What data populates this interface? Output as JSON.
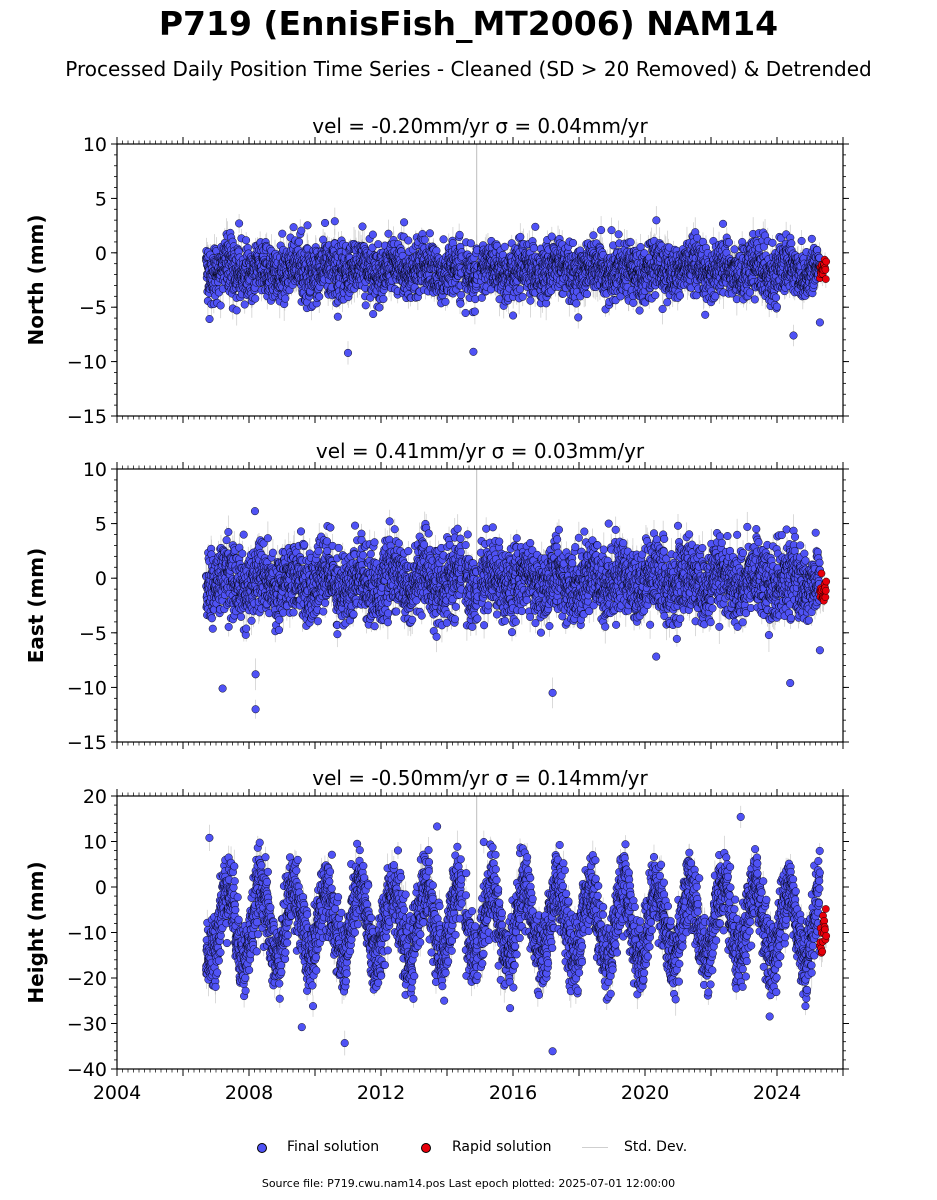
{
  "title": "P719 (EnnisFish_MT2006) NAM14",
  "subtitle": "Processed Daily Position Time Series - Cleaned (SD > 20 Removed) & Detrended",
  "source_note": "Source file: P719.cwu.nam14.pos  Last epoch plotted: 2025-07-01 12:00:00",
  "colors": {
    "final": "#4f52f5",
    "rapid": "#e8000b",
    "sd": "#bdbdbd",
    "edge": "#000000"
  },
  "legend": {
    "final_label": "Final solution",
    "rapid_label": "Rapid solution",
    "sd_label": "Std. Dev."
  },
  "chart_data": [
    {
      "type": "scatter",
      "title": "vel = -0.20mm/yr   σ = 0.04mm/yr",
      "ylabel": "North (mm)",
      "xlim": [
        2004,
        2026
      ],
      "ylim": [
        -15,
        10
      ],
      "yticks": [
        -15,
        -10,
        -5,
        0,
        5,
        10
      ],
      "series": [
        {
          "name": "Final solution",
          "x_range": [
            2006.7,
            2025.3
          ],
          "mean": -1.6,
          "spread": 1.2,
          "seasonal_amplitude": 0.5
        },
        {
          "name": "Rapid solution",
          "x_range": [
            2025.3,
            2025.5
          ],
          "mean": -1.5,
          "spread": 0.6
        }
      ],
      "outliers": [
        [
          2011.0,
          -9.2
        ],
        [
          2014.8,
          -9.1
        ],
        [
          2024.5,
          -7.6
        ],
        [
          2025.3,
          -6.4
        ],
        [
          2010.6,
          2.9
        ],
        [
          2012.7,
          2.8
        ],
        [
          2007.7,
          2.7
        ]
      ]
    },
    {
      "type": "scatter",
      "title": "vel = 0.41mm/yr   σ = 0.03mm/yr",
      "ylabel": "East (mm)",
      "xlim": [
        2004,
        2026
      ],
      "ylim": [
        -15,
        10
      ],
      "yticks": [
        -15,
        -10,
        -5,
        0,
        5,
        10
      ],
      "series": [
        {
          "name": "Final solution",
          "x_range": [
            2006.7,
            2025.3
          ],
          "mean": -0.3,
          "spread": 1.6,
          "seasonal_amplitude": 0.8
        },
        {
          "name": "Rapid solution",
          "x_range": [
            2025.3,
            2025.5
          ],
          "mean": -1.0,
          "spread": 0.8
        }
      ],
      "outliers": [
        [
          2008.2,
          -12.0
        ],
        [
          2007.2,
          -10.1
        ],
        [
          2017.2,
          -10.5
        ],
        [
          2024.4,
          -9.6
        ],
        [
          2008.2,
          -8.8
        ],
        [
          2025.3,
          -6.6
        ],
        [
          2021.0,
          4.8
        ],
        [
          2018.9,
          5.0
        ],
        [
          2023.1,
          4.7
        ]
      ]
    },
    {
      "type": "scatter",
      "title": "vel = -0.50mm/yr   σ = 0.14mm/yr",
      "ylabel": "Height (mm)",
      "xlim": [
        2004,
        2026
      ],
      "ylim": [
        -40,
        20
      ],
      "yticks": [
        -40,
        -30,
        -20,
        -10,
        0,
        10,
        20
      ],
      "xticks": [
        2004,
        2008,
        2012,
        2016,
        2020,
        2024
      ],
      "series": [
        {
          "name": "Final solution",
          "x_range": [
            2006.7,
            2025.3
          ],
          "mean": -8.0,
          "spread": 4.0,
          "seasonal_amplitude": 8.0
        },
        {
          "name": "Rapid solution",
          "x_range": [
            2025.3,
            2025.5
          ],
          "mean": -9.5,
          "spread": 3.0
        }
      ],
      "outliers": [
        [
          2010.9,
          -34.3
        ],
        [
          2017.2,
          -36.1
        ],
        [
          2022.9,
          15.4
        ],
        [
          2013.7,
          13.3
        ],
        [
          2006.8,
          10.8
        ],
        [
          2009.6,
          -30.8
        ]
      ]
    }
  ]
}
